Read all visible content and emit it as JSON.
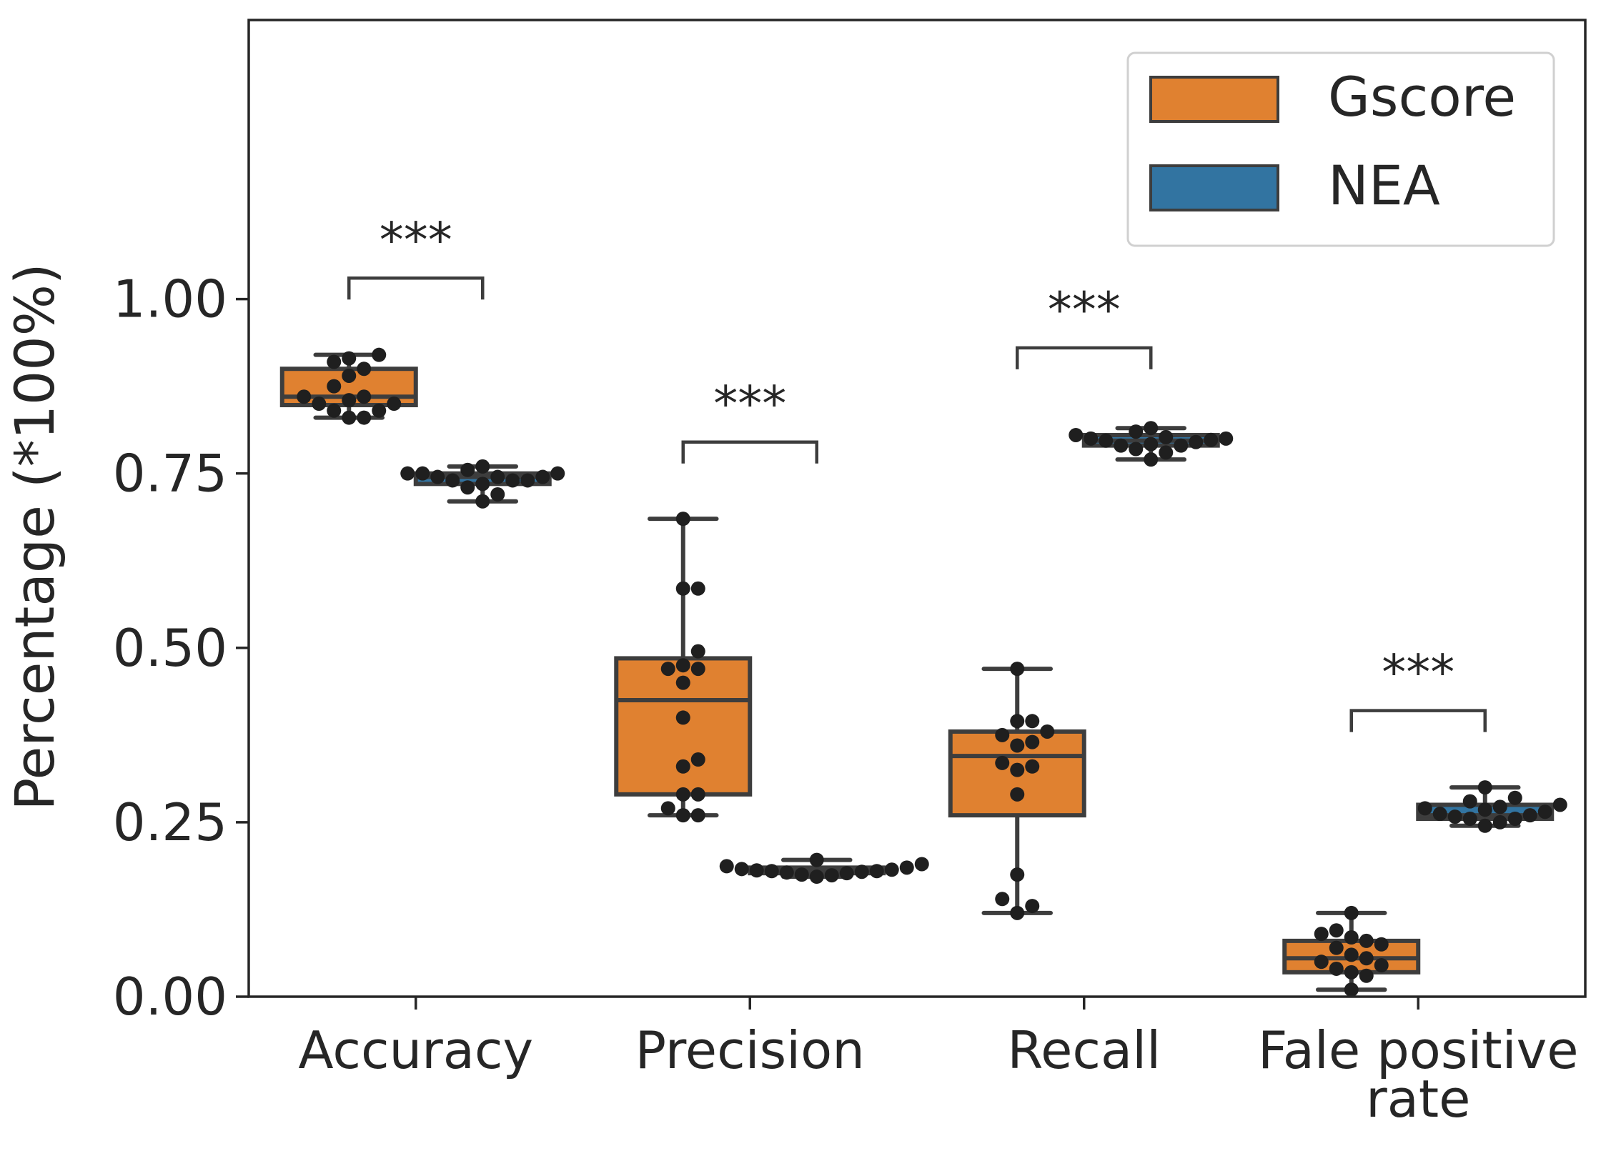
{
  "chart_data": {
    "type": "box",
    "title": "",
    "xlabel": "",
    "ylabel": "Percentage (*100%)",
    "ylim": [
      0,
      1.4
    ],
    "yticks": [
      0.0,
      0.25,
      0.5,
      0.75,
      1.0
    ],
    "ytick_labels": [
      "0.00",
      "0.25",
      "0.50",
      "0.75",
      "1.00"
    ],
    "categories": [
      {
        "lines": [
          "Accuracy"
        ]
      },
      {
        "lines": [
          "Precision"
        ]
      },
      {
        "lines": [
          "Recall"
        ]
      },
      {
        "lines": [
          "Fale positive",
          "rate"
        ]
      }
    ],
    "grid": false,
    "legend_position": "upper right",
    "series": [
      {
        "name": "Gscore",
        "color": "#e08130",
        "boxes": [
          {
            "whislo": 0.83,
            "q1": 0.848,
            "med": 0.86,
            "q3": 0.9,
            "whishi": 0.92,
            "points": [
              0.83,
              0.83,
              0.84,
              0.84,
              0.85,
              0.85,
              0.855,
              0.86,
              0.86,
              0.875,
              0.89,
              0.9,
              0.91,
              0.915,
              0.92
            ]
          },
          {
            "whislo": 0.26,
            "q1": 0.29,
            "med": 0.425,
            "q3": 0.485,
            "whishi": 0.685,
            "points": [
              0.26,
              0.26,
              0.27,
              0.29,
              0.29,
              0.33,
              0.34,
              0.4,
              0.45,
              0.47,
              0.47,
              0.475,
              0.495,
              0.585,
              0.585,
              0.685
            ]
          },
          {
            "whislo": 0.12,
            "q1": 0.26,
            "med": 0.345,
            "q3": 0.38,
            "whishi": 0.47,
            "points": [
              0.12,
              0.13,
              0.14,
              0.175,
              0.29,
              0.325,
              0.33,
              0.335,
              0.36,
              0.365,
              0.375,
              0.38,
              0.395,
              0.395,
              0.47
            ]
          },
          {
            "whislo": 0.01,
            "q1": 0.035,
            "med": 0.055,
            "q3": 0.08,
            "whishi": 0.12,
            "points": [
              0.01,
              0.03,
              0.035,
              0.04,
              0.045,
              0.05,
              0.055,
              0.06,
              0.07,
              0.075,
              0.08,
              0.085,
              0.09,
              0.095,
              0.12
            ]
          }
        ]
      },
      {
        "name": "NEA",
        "color": "#3274a1",
        "boxes": [
          {
            "whislo": 0.71,
            "q1": 0.735,
            "med": 0.745,
            "q3": 0.75,
            "whishi": 0.76,
            "points": [
              0.71,
              0.72,
              0.73,
              0.735,
              0.74,
              0.74,
              0.74,
              0.745,
              0.745,
              0.745,
              0.75,
              0.75,
              0.75,
              0.755,
              0.76
            ]
          },
          {
            "whislo": 0.172,
            "q1": 0.177,
            "med": 0.18,
            "q3": 0.185,
            "whishi": 0.196,
            "points": [
              0.172,
              0.174,
              0.175,
              0.177,
              0.178,
              0.179,
              0.18,
              0.18,
              0.181,
              0.182,
              0.183,
              0.185,
              0.187,
              0.19,
              0.196
            ]
          },
          {
            "whislo": 0.77,
            "q1": 0.79,
            "med": 0.797,
            "q3": 0.805,
            "whishi": 0.815,
            "points": [
              0.77,
              0.78,
              0.785,
              0.79,
              0.79,
              0.792,
              0.795,
              0.797,
              0.798,
              0.8,
              0.8,
              0.802,
              0.805,
              0.81,
              0.815
            ]
          },
          {
            "whislo": 0.245,
            "q1": 0.255,
            "med": 0.26,
            "q3": 0.275,
            "whishi": 0.3,
            "points": [
              0.245,
              0.25,
              0.255,
              0.255,
              0.258,
              0.26,
              0.262,
              0.265,
              0.268,
              0.27,
              0.272,
              0.275,
              0.28,
              0.285,
              0.3
            ]
          }
        ]
      }
    ],
    "annotations": [
      {
        "category": 0,
        "text": "***",
        "y": 1.03
      },
      {
        "category": 1,
        "text": "***",
        "y": 0.795
      },
      {
        "category": 2,
        "text": "***",
        "y": 0.93
      },
      {
        "category": 3,
        "text": "***",
        "y": 0.41
      }
    ]
  }
}
